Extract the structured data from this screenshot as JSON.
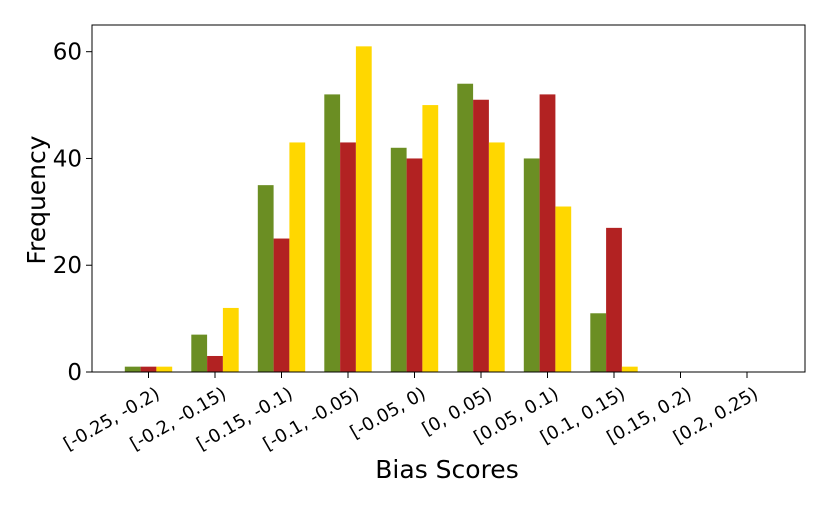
{
  "chart_data": {
    "type": "bar",
    "title": "",
    "xlabel": "Bias Scores",
    "ylabel": "Frequency",
    "ylim": [
      0,
      65
    ],
    "yticks": [
      0,
      20,
      40,
      60
    ],
    "grid": false,
    "legend": "none",
    "categories": [
      "[-0.25, -0.2)",
      "[-0.2, -0.15)",
      "[-0.15, -0.1)",
      "[-0.1, -0.05)",
      "[-0.05, 0)",
      "[0, 0.05)",
      "[0.05, 0.1)",
      "[0.1, 0.15)",
      "[0.15, 0.2)",
      "[0.2, 0.25)"
    ],
    "series": [
      {
        "color": "#6b8e23",
        "values": [
          1,
          7,
          35,
          52,
          42,
          54,
          40,
          11,
          0,
          0
        ]
      },
      {
        "color": "#b22222",
        "values": [
          1,
          3,
          25,
          43,
          40,
          51,
          52,
          27,
          0,
          0
        ]
      },
      {
        "color": "#ffd700",
        "values": [
          1,
          12,
          43,
          61,
          50,
          43,
          31,
          1,
          0,
          0
        ]
      }
    ]
  }
}
